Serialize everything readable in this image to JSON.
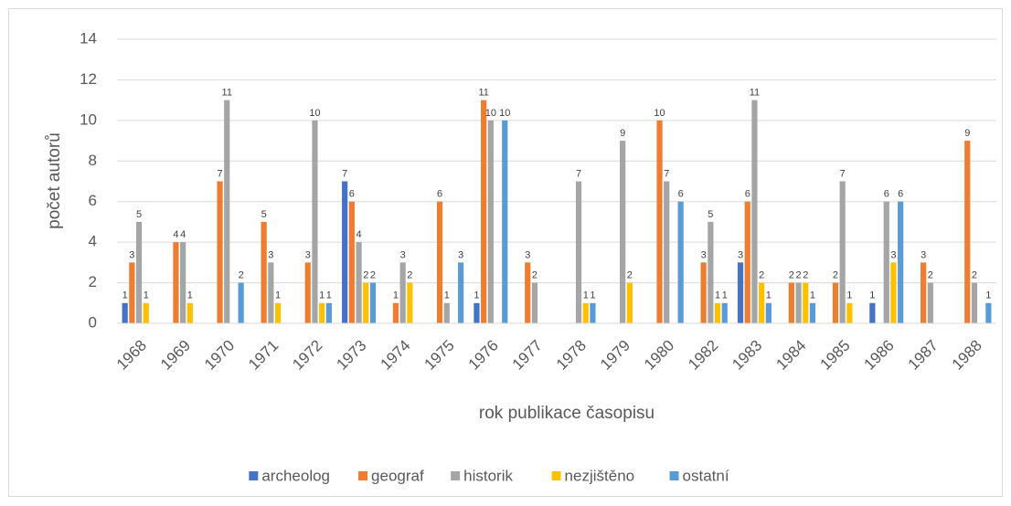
{
  "chart_data": {
    "type": "bar",
    "categories": [
      "1968",
      "1969",
      "1970",
      "1971",
      "1972",
      "1973",
      "1974",
      "1975",
      "1976",
      "1977",
      "1978",
      "1979",
      "1980",
      "1982",
      "1983",
      "1984",
      "1985",
      "1986",
      "1987",
      "1988"
    ],
    "series": [
      {
        "name": "archeolog",
        "color": "#4472c4",
        "values": [
          1,
          null,
          null,
          null,
          null,
          7,
          null,
          null,
          1,
          null,
          null,
          null,
          null,
          null,
          3,
          null,
          null,
          1,
          null,
          null
        ]
      },
      {
        "name": "geograf",
        "color": "#ed7d31",
        "values": [
          3,
          4,
          7,
          5,
          3,
          6,
          1,
          6,
          11,
          3,
          null,
          null,
          10,
          3,
          6,
          2,
          2,
          null,
          3,
          9
        ]
      },
      {
        "name": "historik",
        "color": "#a5a5a5",
        "values": [
          5,
          4,
          11,
          3,
          10,
          4,
          3,
          1,
          10,
          2,
          7,
          9,
          7,
          5,
          11,
          2,
          7,
          6,
          2,
          2
        ]
      },
      {
        "name": "nezjištěno",
        "color": "#ffc000",
        "values": [
          1,
          1,
          null,
          1,
          1,
          2,
          2,
          null,
          null,
          null,
          1,
          2,
          null,
          1,
          2,
          2,
          1,
          3,
          null,
          null
        ]
      },
      {
        "name": "ostatní",
        "color": "#5b9bd5",
        "values": [
          null,
          null,
          2,
          null,
          1,
          2,
          null,
          3,
          10,
          null,
          1,
          null,
          6,
          1,
          1,
          1,
          null,
          6,
          null,
          1
        ]
      }
    ],
    "xlabel": "rok publikace časopisu",
    "ylabel": "počet autorů",
    "ylim": [
      0,
      14
    ],
    "yticks": [
      0,
      2,
      4,
      6,
      8,
      10,
      12,
      14
    ],
    "grid": true,
    "legend": "bottom",
    "data_labels": true
  }
}
